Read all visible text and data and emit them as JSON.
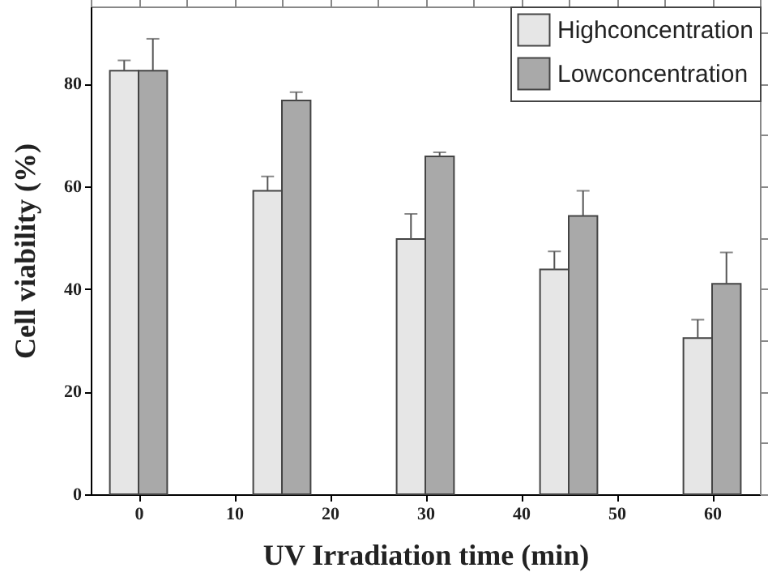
{
  "chart_data": {
    "type": "bar",
    "xlabel": "UV Irradiation time (min)",
    "ylabel": "Cell viability (%)",
    "xlim": [
      -5,
      65
    ],
    "xticks": [
      0,
      {
        "value": 5,
        "label": null
      },
      10,
      {
        "value": 15,
        "label": null
      },
      20,
      {
        "value": 25,
        "label": null
      },
      30,
      {
        "value": 35,
        "label": null
      },
      40,
      {
        "value": 45,
        "label": null
      },
      50,
      {
        "value": 55,
        "label": null
      },
      60
    ],
    "ylim": [
      0,
      95
    ],
    "yticks": [
      0,
      {
        "value": 10,
        "label": null
      },
      20,
      {
        "value": 30,
        "label": null
      },
      40,
      {
        "value": 50,
        "label": null
      },
      60,
      {
        "value": 70,
        "label": null
      },
      80,
      {
        "value": 90,
        "label": null
      }
    ],
    "x": [
      0,
      15,
      30,
      45,
      60
    ],
    "series": [
      {
        "name": "Highconcentration",
        "color": "#e6e6e6",
        "values": [
          82.5,
          59.1,
          49.7,
          43.8,
          30.4
        ],
        "errors": [
          [
            82.5,
            84.5
          ],
          [
            59.1,
            61.9
          ],
          [
            49.7,
            54.6
          ],
          [
            43.8,
            47.3
          ],
          [
            30.4,
            34.0
          ]
        ]
      },
      {
        "name": "Lowconcentration",
        "color": "#a9a9a9",
        "values": [
          82.5,
          76.7,
          65.8,
          54.2,
          41.0
        ],
        "errors": [
          [
            82.5,
            88.7
          ],
          [
            76.7,
            78.3
          ],
          [
            65.8,
            66.6
          ],
          [
            54.2,
            59.1
          ],
          [
            41.0,
            47.1
          ]
        ]
      }
    ],
    "legend": "top right",
    "grid": false
  }
}
